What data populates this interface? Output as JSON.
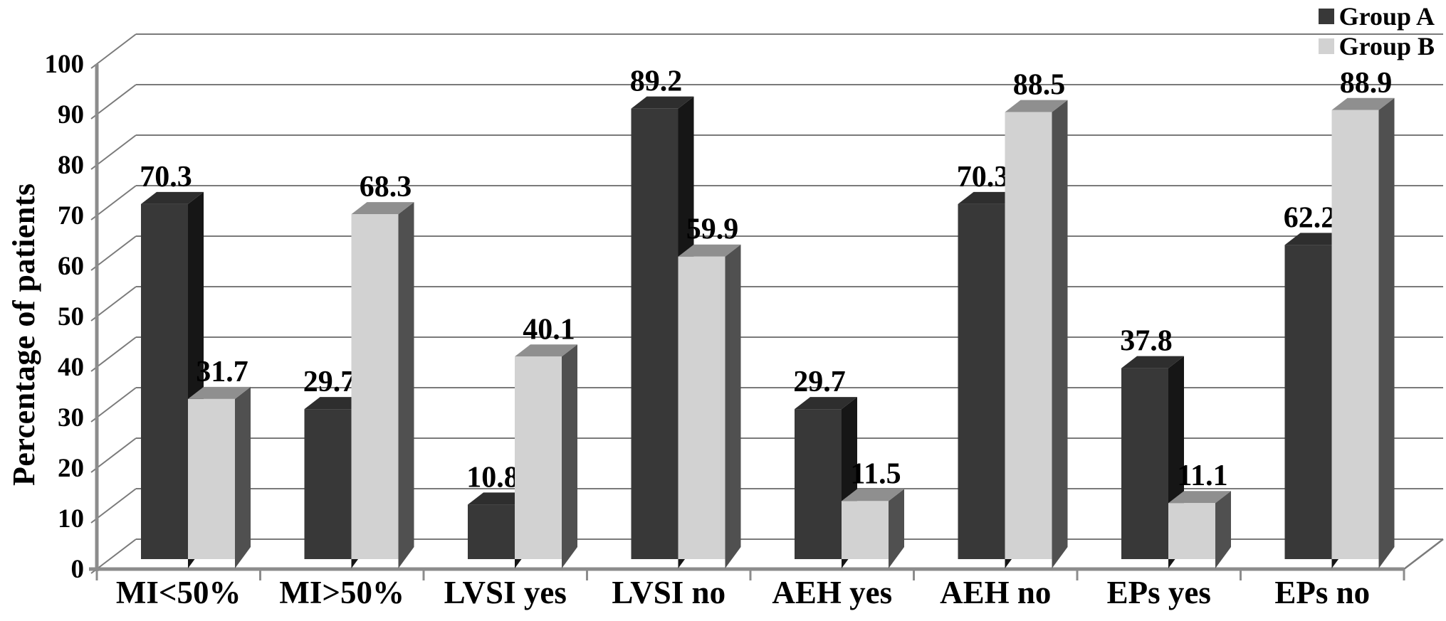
{
  "chart_data": {
    "type": "bar",
    "projection": "3d",
    "title": "",
    "ylabel": "Percentage of patients",
    "xlabel": "",
    "categories": [
      "MI<50%",
      "MI>50%",
      "LVSI yes",
      "LVSI no",
      "AEH yes",
      "AEH no",
      "EPs yes",
      "EPs no"
    ],
    "series": [
      {
        "name": "Group A",
        "values": [
          70.3,
          29.7,
          10.8,
          89.2,
          29.7,
          70.3,
          37.8,
          62.2
        ],
        "front_color": "#383838",
        "top_color": "#2e2e2e",
        "side_color": "#161616"
      },
      {
        "name": "Group B",
        "values": [
          31.7,
          68.3,
          40.1,
          59.9,
          11.5,
          88.5,
          11.1,
          88.9
        ],
        "front_color": "#d2d2d2",
        "top_color": "#8f8f8f",
        "side_color": "#505050"
      }
    ],
    "y_axis": {
      "min": 0,
      "max": 100,
      "step": 10,
      "tick_labels": [
        "0",
        "10",
        "20",
        "30",
        "40",
        "50",
        "60",
        "70",
        "80",
        "90",
        "100"
      ]
    },
    "data_labels": true,
    "grid": true,
    "legend_position": "top-right"
  },
  "legend": {
    "items": [
      {
        "label": "Group A",
        "color": "#383838"
      },
      {
        "label": "Group B",
        "color": "#d2d2d2"
      }
    ]
  },
  "colors": {
    "background": "#ffffff",
    "gridline": "#7a7a7a",
    "axis": "#8c8c8c",
    "text": "#000000"
  }
}
